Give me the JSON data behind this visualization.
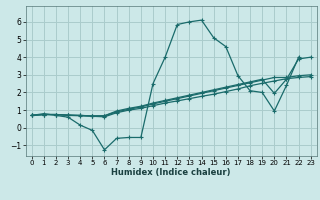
{
  "title": "",
  "xlabel": "Humidex (Indice chaleur)",
  "ylabel": "",
  "bg_color": "#cce8e8",
  "grid_color": "#aacccc",
  "line_color": "#1a6b6b",
  "xlim": [
    -0.5,
    23.5
  ],
  "ylim": [
    -1.6,
    6.9
  ],
  "xticks": [
    0,
    1,
    2,
    3,
    4,
    5,
    6,
    7,
    8,
    9,
    10,
    11,
    12,
    13,
    14,
    15,
    16,
    17,
    18,
    19,
    20,
    21,
    22,
    23
  ],
  "yticks": [
    -1,
    0,
    1,
    2,
    3,
    4,
    5,
    6
  ],
  "series": [
    {
      "x": [
        0,
        1,
        2,
        3,
        4,
        5,
        6,
        7,
        8,
        9,
        10,
        11,
        12,
        13,
        14,
        15,
        16,
        17,
        18,
        19,
        20,
        21,
        22
      ],
      "y": [
        0.7,
        0.8,
        0.7,
        0.6,
        0.15,
        -0.15,
        -1.25,
        -0.6,
        -0.55,
        -0.55,
        2.5,
        4.0,
        5.85,
        6.0,
        6.1,
        5.1,
        4.6,
        2.95,
        2.1,
        2.0,
        0.95,
        2.4,
        4.0
      ]
    },
    {
      "x": [
        0,
        1,
        2,
        3,
        4,
        5,
        6,
        7,
        8,
        9,
        10,
        11,
        12,
        13,
        14,
        15,
        16,
        17,
        18,
        19,
        20,
        21,
        22,
        23
      ],
      "y": [
        0.7,
        0.75,
        0.75,
        0.7,
        0.68,
        0.65,
        0.62,
        0.85,
        1.0,
        1.1,
        1.25,
        1.4,
        1.52,
        1.65,
        1.78,
        1.9,
        2.05,
        2.2,
        2.38,
        2.52,
        2.65,
        2.78,
        2.85,
        2.9
      ]
    },
    {
      "x": [
        0,
        1,
        2,
        3,
        4,
        5,
        6,
        7,
        8,
        9,
        10,
        11,
        12,
        13,
        14,
        15,
        16,
        17,
        18,
        19,
        20,
        21,
        22,
        23
      ],
      "y": [
        0.7,
        0.75,
        0.75,
        0.72,
        0.7,
        0.67,
        0.68,
        0.9,
        1.05,
        1.18,
        1.35,
        1.5,
        1.65,
        1.8,
        1.95,
        2.1,
        2.25,
        2.4,
        2.55,
        2.7,
        2.85,
        2.85,
        2.95,
        3.0
      ]
    },
    {
      "x": [
        0,
        1,
        2,
        3,
        4,
        5,
        6,
        7,
        8,
        9,
        10,
        11,
        12,
        13,
        14,
        15,
        16,
        17,
        18,
        19,
        20,
        21,
        22,
        23
      ],
      "y": [
        0.7,
        0.75,
        0.75,
        0.72,
        0.7,
        0.67,
        0.68,
        0.95,
        1.1,
        1.22,
        1.4,
        1.55,
        1.7,
        1.85,
        2.0,
        2.15,
        2.3,
        2.45,
        2.6,
        2.75,
        1.95,
        2.75,
        3.9,
        4.0
      ]
    }
  ]
}
